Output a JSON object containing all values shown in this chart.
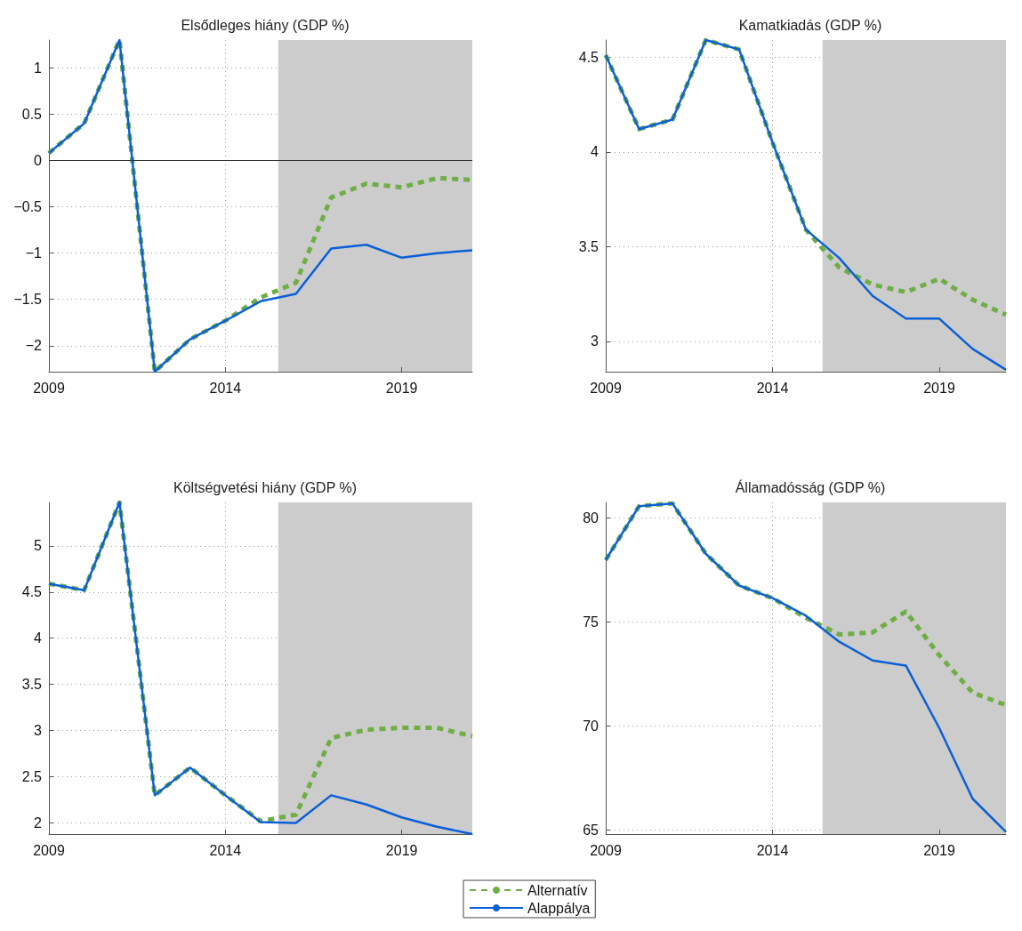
{
  "chart_data": [
    {
      "type": "line",
      "title": "Elsődleges hiány (GDP %)",
      "x": [
        2009,
        2010,
        2011,
        2012,
        2013,
        2014,
        2015,
        2016,
        2017,
        2018,
        2019,
        2020,
        2021
      ],
      "series": [
        {
          "color": "#6fae45",
          "line_style": "dashed",
          "values": [
            0.08,
            0.4,
            1.3,
            -2.28,
            -1.93,
            -1.73,
            -1.48,
            -1.32,
            -0.4,
            -0.25,
            -0.29,
            -0.19,
            -0.21
          ]
        },
        {
          "color": "#0a5fd8",
          "line_style": "solid",
          "values": [
            0.08,
            0.4,
            1.3,
            -2.28,
            -1.93,
            -1.73,
            -1.52,
            -1.44,
            -0.95,
            -0.91,
            -1.05,
            -1.0,
            -0.97
          ]
        }
      ],
      "xlim": [
        2009,
        2021
      ],
      "xticks": [
        2009,
        2014,
        2019
      ],
      "ylim": [
        -2.28,
        1.3
      ],
      "yticks": [
        -2,
        -1.5,
        -1,
        -0.5,
        0,
        0.5,
        1
      ],
      "bands": [
        {
          "axis": "x",
          "from": 2015.5,
          "to": 2021,
          "color": "#cccccc"
        }
      ],
      "ref_lines": [
        {
          "axis": "y",
          "value": 0,
          "color": "#333333",
          "line_style": "solid"
        }
      ],
      "grid": true,
      "marker": "none"
    },
    {
      "type": "line",
      "title": "Kamatkiadás (GDP %)",
      "x": [
        2009,
        2010,
        2011,
        2012,
        2013,
        2014,
        2015,
        2016,
        2017,
        2018,
        2019,
        2020,
        2021
      ],
      "series": [
        {
          "color": "#6fae45",
          "line_style": "dashed",
          "values": [
            4.51,
            4.12,
            4.17,
            4.59,
            4.54,
            4.05,
            3.59,
            3.39,
            3.3,
            3.26,
            3.33,
            3.22,
            3.14
          ]
        },
        {
          "color": "#0a5fd8",
          "line_style": "solid",
          "values": [
            4.51,
            4.12,
            4.17,
            4.59,
            4.54,
            4.05,
            3.59,
            3.44,
            3.24,
            3.12,
            3.12,
            2.96,
            2.85
          ]
        }
      ],
      "xlim": [
        2009,
        2021
      ],
      "xticks": [
        2009,
        2014,
        2019
      ],
      "ylim": [
        2.84,
        4.59
      ],
      "yticks": [
        3,
        3.5,
        4,
        4.5
      ],
      "bands": [
        {
          "axis": "x",
          "from": 2015.5,
          "to": 2021,
          "color": "#cccccc"
        }
      ],
      "grid": true,
      "marker": "none"
    },
    {
      "type": "line",
      "title": "Költségvetési hiány (GDP %)",
      "x": [
        2009,
        2010,
        2011,
        2012,
        2013,
        2014,
        2015,
        2016,
        2017,
        2018,
        2019,
        2020,
        2021
      ],
      "series": [
        {
          "name": "Alternatív",
          "color": "#6fae45",
          "line_style": "dashed",
          "values": [
            4.59,
            4.52,
            5.47,
            2.3,
            2.6,
            2.3,
            2.02,
            2.09,
            2.92,
            3.01,
            3.03,
            3.03,
            2.94
          ]
        },
        {
          "name": "Alappálya",
          "color": "#0a5fd8",
          "line_style": "solid",
          "values": [
            4.59,
            4.52,
            5.47,
            2.3,
            2.6,
            2.3,
            2.01,
            2.0,
            2.3,
            2.2,
            2.06,
            1.96,
            1.88
          ]
        }
      ],
      "xlim": [
        2009,
        2021
      ],
      "xticks": [
        2009,
        2014,
        2019
      ],
      "ylim": [
        1.88,
        5.47
      ],
      "yticks": [
        2,
        2.5,
        3,
        3.5,
        4,
        4.5,
        5
      ],
      "bands": [
        {
          "axis": "x",
          "from": 2015.5,
          "to": 2021,
          "color": "#cccccc"
        }
      ],
      "grid": true,
      "marker": "none",
      "legend": "bottom right"
    },
    {
      "type": "line",
      "title": "Államadósság (GDP %)",
      "x": [
        2009,
        2010,
        2011,
        2012,
        2013,
        2014,
        2015,
        2016,
        2017,
        2018,
        2019,
        2020,
        2021
      ],
      "series": [
        {
          "color": "#6fae45",
          "line_style": "dashed",
          "values": [
            77.98,
            80.57,
            80.7,
            78.28,
            76.75,
            76.15,
            75.2,
            74.4,
            74.5,
            75.5,
            73.4,
            71.6,
            71.0
          ]
        },
        {
          "color": "#0a5fd8",
          "line_style": "solid",
          "values": [
            77.98,
            80.57,
            80.7,
            78.28,
            76.75,
            76.15,
            75.3,
            74.05,
            73.15,
            72.9,
            69.9,
            66.5,
            64.9
          ]
        }
      ],
      "xlim": [
        2009,
        2021
      ],
      "xticks": [
        2009,
        2014,
        2019
      ],
      "ylim": [
        64.8,
        80.75
      ],
      "yticks": [
        65,
        70,
        75,
        80
      ],
      "bands": [
        {
          "axis": "x",
          "from": 2015.5,
          "to": 2021,
          "color": "#cccccc"
        }
      ],
      "grid": true,
      "marker": "none"
    }
  ]
}
